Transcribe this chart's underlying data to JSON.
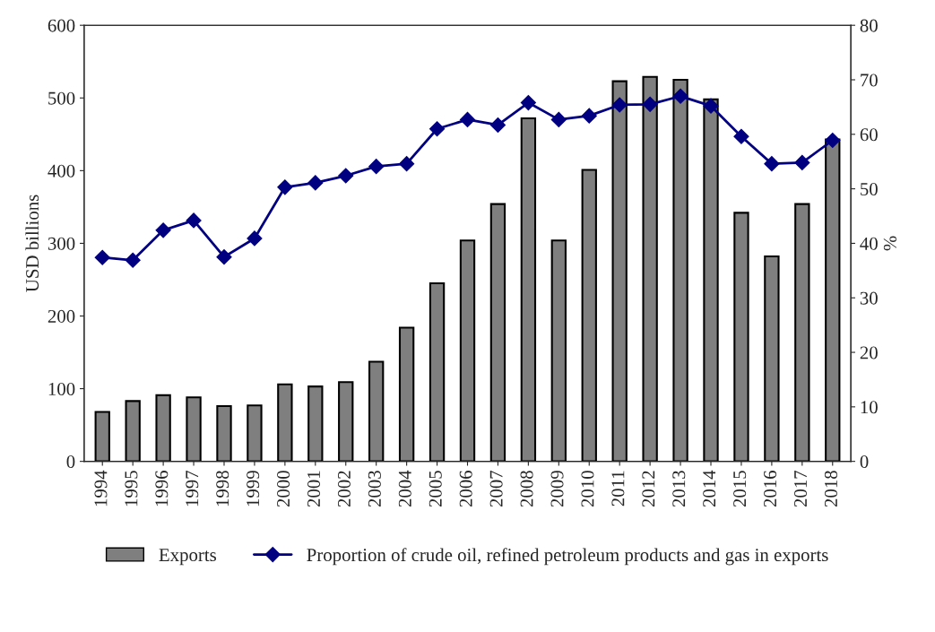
{
  "chart_data": {
    "type": "bar",
    "categories": [
      "1994",
      "1995",
      "1996",
      "1997",
      "1998",
      "1999",
      "2000",
      "2001",
      "2002",
      "2003",
      "2004",
      "2005",
      "2006",
      "2007",
      "2008",
      "2009",
      "2010",
      "2011",
      "2012",
      "2013",
      "2014",
      "2015",
      "2016",
      "2017",
      "2018"
    ],
    "series": [
      {
        "name": "Exports",
        "color": "#7f7f7f",
        "values": [
          68,
          83,
          91,
          88,
          76,
          77,
          106,
          103,
          109,
          137,
          184,
          245,
          304,
          354,
          472,
          304,
          401,
          523,
          529,
          525,
          498,
          342,
          282,
          354,
          443
        ]
      },
      {
        "name": "Proportion of crude oil, refined petroleum products and gas in exports",
        "type": "line",
        "axis": "y2",
        "color": "#000080",
        "marker": "diamond",
        "values": [
          37.4,
          36.9,
          42.4,
          44.2,
          37.5,
          40.9,
          50.3,
          51.1,
          52.4,
          54.1,
          54.6,
          61.0,
          62.7,
          61.7,
          65.8,
          62.7,
          63.4,
          65.4,
          65.5,
          67.0,
          65.2,
          59.6,
          54.6,
          54.8,
          58.9
        ]
      }
    ],
    "ylabel": "USD billions",
    "y2label": "%",
    "ylim": [
      0,
      600
    ],
    "yticks": [
      0,
      100,
      200,
      300,
      400,
      500,
      600
    ],
    "y2lim": [
      0,
      80
    ],
    "y2ticks": [
      0,
      10,
      20,
      30,
      40,
      50,
      60,
      70,
      80
    ],
    "legend": "bottom",
    "grid": false
  }
}
